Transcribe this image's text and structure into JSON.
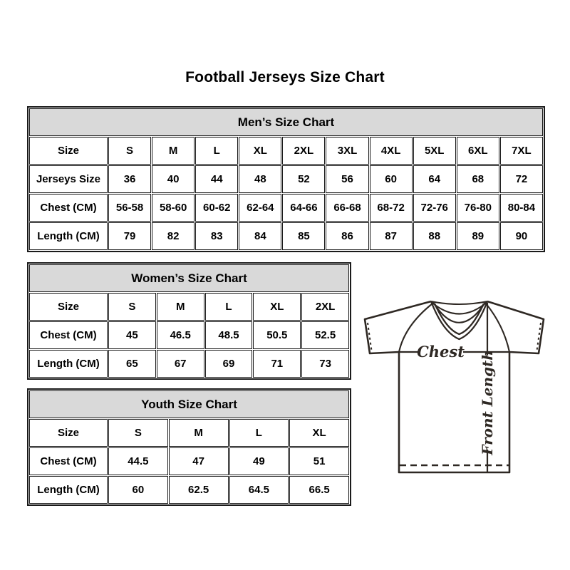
{
  "page": {
    "title": "Football Jerseys Size Chart"
  },
  "tables": [
    {
      "id": "mens",
      "title": "Men’s Size Chart",
      "label_col_width": 110,
      "rows": [
        {
          "label": "Size",
          "values": [
            "S",
            "M",
            "L",
            "XL",
            "2XL",
            "3XL",
            "4XL",
            "5XL",
            "6XL",
            "7XL"
          ]
        },
        {
          "label": "Jerseys Size",
          "values": [
            "36",
            "40",
            "44",
            "48",
            "52",
            "56",
            "60",
            "64",
            "68",
            "72"
          ]
        },
        {
          "label": "Chest (CM)",
          "values": [
            "56-58",
            "58-60",
            "60-62",
            "62-64",
            "64-66",
            "66-68",
            "68-72",
            "72-76",
            "76-80",
            "80-84"
          ]
        },
        {
          "label": "Length (CM)",
          "values": [
            "79",
            "82",
            "83",
            "84",
            "85",
            "86",
            "87",
            "88",
            "89",
            "90"
          ]
        }
      ]
    },
    {
      "id": "womens",
      "title": "Women’s Size Chart",
      "label_col_width": 110,
      "rows": [
        {
          "label": "Size",
          "values": [
            "S",
            "M",
            "L",
            "XL",
            "2XL"
          ]
        },
        {
          "label": "Chest (CM)",
          "values": [
            "45",
            "46.5",
            "48.5",
            "50.5",
            "52.5"
          ]
        },
        {
          "label": "Length (CM)",
          "values": [
            "65",
            "67",
            "69",
            "71",
            "73"
          ]
        }
      ]
    },
    {
      "id": "youth",
      "title": "Youth Size Chart",
      "label_col_width": 110,
      "rows": [
        {
          "label": "Size",
          "values": [
            "S",
            "M",
            "L",
            "XL"
          ]
        },
        {
          "label": "Chest (CM)",
          "values": [
            "44.5",
            "47",
            "49",
            "51"
          ]
        },
        {
          "label": "Length (CM)",
          "values": [
            "60",
            "62.5",
            "64.5",
            "66.5"
          ]
        }
      ]
    }
  ],
  "diagram": {
    "chest_label": "Chest",
    "front_length_label": "Front Length"
  },
  "colors": {
    "header_bg": "#d9d9d9",
    "border": "#1a1a1a",
    "jersey_line": "#2e2823"
  }
}
